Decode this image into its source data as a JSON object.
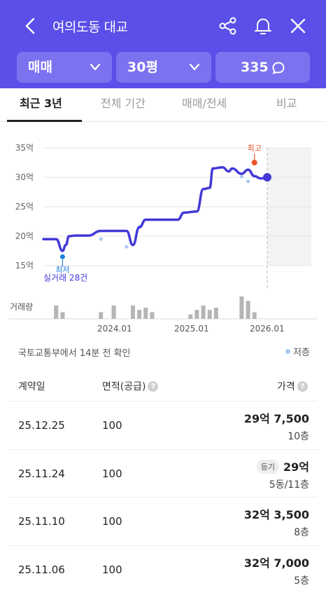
{
  "header": {
    "title": "여의도동 대교",
    "icons": [
      "chevron-left-icon",
      "share-icon",
      "bell-icon",
      "close-icon"
    ],
    "color": "#5a4fe8",
    "filters": {
      "trade_type": "매매",
      "area": "30평",
      "comment_count": "335"
    }
  },
  "tabs": [
    "최근 3년",
    "전체 기간",
    "매매/전세",
    "비교"
  ],
  "active_tab": "최근 3년",
  "chart_data": {
    "type": "line",
    "y_ticks": [
      "35억",
      "30억",
      "25억",
      "20억",
      "15억"
    ],
    "x_ticks": [
      "2024.01",
      "2025.01",
      "2026.01"
    ],
    "ylabel_bottom": "거래량",
    "ylim": [
      15,
      35
    ],
    "x_unit": "months since 2023.01",
    "xlim": [
      0,
      38
    ],
    "line_color": "#4239d6",
    "series": [
      {
        "x": [
          0,
          2,
          3,
          3.5,
          4,
          5,
          7,
          9,
          10,
          12,
          13,
          14,
          15,
          16,
          17,
          18,
          21,
          22,
          24,
          25,
          26,
          26.5,
          28,
          29,
          29.5,
          31,
          32,
          33,
          34,
          35
        ],
        "y": [
          19.5,
          19.5,
          17.5,
          18.5,
          20,
          20.1,
          20.1,
          20.9,
          20.9,
          20.9,
          20.9,
          18.5,
          21.5,
          22.8,
          22.8,
          22.8,
          22.8,
          24,
          24.2,
          28,
          28.2,
          31.5,
          31.7,
          31,
          31.5,
          30.6,
          31.3,
          30.2,
          29.8,
          30
        ]
      }
    ],
    "scatter_points": {
      "x": [
        9,
        13,
        15,
        31,
        32
      ],
      "y": [
        19.5,
        18.2,
        21.6,
        30.1,
        29.3
      ]
    },
    "max_marker": {
      "x": 33,
      "y": 32.5,
      "label": "최고",
      "color": "#e8542a"
    },
    "min_marker": {
      "x": 3,
      "y": 16.5,
      "label": "최저",
      "color": "#1e80e0"
    },
    "current_point": {
      "x": 35,
      "y": 30
    },
    "annotation": "실거래 28건",
    "volume": {
      "x": [
        2,
        3,
        9,
        11,
        14,
        15,
        16,
        17,
        23,
        24,
        25,
        26,
        27,
        31,
        32,
        33
      ],
      "values": [
        3,
        1.5,
        1.5,
        3,
        3,
        2,
        2.5,
        1.5,
        1,
        2,
        3,
        2,
        2.5,
        5,
        4,
        1.5
      ]
    }
  },
  "source_note": "국토교통부에서 14분 전 확인",
  "legend_low_floor": "저층",
  "table": {
    "headers": {
      "date": "계약일",
      "area": "면적(공급)",
      "price": "가격"
    },
    "rows": [
      {
        "date": "25.12.25",
        "area": "100",
        "price": "29억 7,500",
        "floor": "10층",
        "badge": ""
      },
      {
        "date": "25.11.24",
        "area": "100",
        "price": "29억",
        "floor": "5동/11층",
        "badge": "등기"
      },
      {
        "date": "25.11.10",
        "area": "100",
        "price": "32억 3,500",
        "floor": "8층",
        "badge": ""
      },
      {
        "date": "25.11.06",
        "area": "100",
        "price": "32억 7,000",
        "floor": "5층",
        "badge": ""
      }
    ]
  }
}
